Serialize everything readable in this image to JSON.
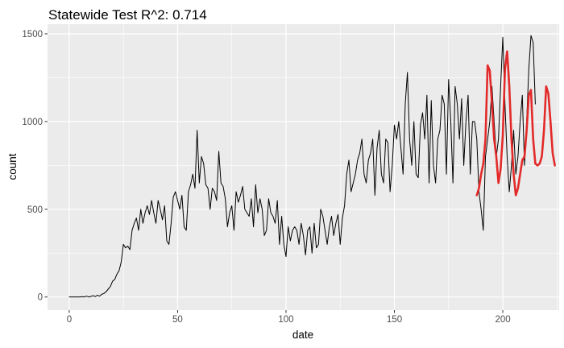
{
  "chart_data": {
    "type": "line",
    "title": "Statewide Test R^2: 0.714",
    "xlabel": "date",
    "ylabel": "count",
    "xlim": [
      -10,
      226
    ],
    "ylim": [
      -75,
      1555
    ],
    "x_ticks": [
      0,
      50,
      100,
      150,
      200
    ],
    "y_ticks": [
      0,
      500,
      1000,
      1500
    ],
    "grid": true,
    "legend": "none",
    "series": [
      {
        "color": "#000000",
        "points": [
          [
            0,
            0
          ],
          [
            1,
            0
          ],
          [
            2,
            0
          ],
          [
            3,
            0
          ],
          [
            4,
            0
          ],
          [
            5,
            0
          ],
          [
            6,
            2
          ],
          [
            7,
            0
          ],
          [
            8,
            5
          ],
          [
            9,
            0
          ],
          [
            10,
            3
          ],
          [
            11,
            8
          ],
          [
            12,
            2
          ],
          [
            13,
            10
          ],
          [
            14,
            5
          ],
          [
            15,
            15
          ],
          [
            16,
            20
          ],
          [
            17,
            30
          ],
          [
            18,
            45
          ],
          [
            19,
            60
          ],
          [
            20,
            90
          ],
          [
            21,
            100
          ],
          [
            22,
            130
          ],
          [
            23,
            150
          ],
          [
            24,
            200
          ],
          [
            25,
            300
          ],
          [
            26,
            280
          ],
          [
            27,
            290
          ],
          [
            28,
            270
          ],
          [
            29,
            380
          ],
          [
            30,
            420
          ],
          [
            31,
            450
          ],
          [
            32,
            380
          ],
          [
            33,
            500
          ],
          [
            34,
            420
          ],
          [
            35,
            480
          ],
          [
            36,
            520
          ],
          [
            37,
            470
          ],
          [
            38,
            550
          ],
          [
            39,
            480
          ],
          [
            40,
            420
          ],
          [
            41,
            550
          ],
          [
            42,
            500
          ],
          [
            43,
            440
          ],
          [
            44,
            520
          ],
          [
            45,
            320
          ],
          [
            46,
            300
          ],
          [
            47,
            420
          ],
          [
            48,
            570
          ],
          [
            49,
            600
          ],
          [
            50,
            550
          ],
          [
            51,
            500
          ],
          [
            52,
            580
          ],
          [
            53,
            400
          ],
          [
            54,
            380
          ],
          [
            55,
            600
          ],
          [
            56,
            640
          ],
          [
            57,
            700
          ],
          [
            58,
            620
          ],
          [
            59,
            950
          ],
          [
            60,
            650
          ],
          [
            61,
            800
          ],
          [
            62,
            760
          ],
          [
            63,
            640
          ],
          [
            64,
            620
          ],
          [
            65,
            500
          ],
          [
            66,
            620
          ],
          [
            67,
            600
          ],
          [
            68,
            550
          ],
          [
            69,
            830
          ],
          [
            70,
            650
          ],
          [
            71,
            630
          ],
          [
            72,
            560
          ],
          [
            73,
            400
          ],
          [
            74,
            480
          ],
          [
            75,
            520
          ],
          [
            76,
            380
          ],
          [
            77,
            600
          ],
          [
            78,
            540
          ],
          [
            79,
            580
          ],
          [
            80,
            630
          ],
          [
            81,
            500
          ],
          [
            82,
            480
          ],
          [
            83,
            460
          ],
          [
            84,
            560
          ],
          [
            85,
            400
          ],
          [
            86,
            640
          ],
          [
            87,
            480
          ],
          [
            88,
            560
          ],
          [
            89,
            500
          ],
          [
            90,
            350
          ],
          [
            91,
            380
          ],
          [
            92,
            560
          ],
          [
            93,
            480
          ],
          [
            94,
            460
          ],
          [
            95,
            420
          ],
          [
            96,
            550
          ],
          [
            97,
            300
          ],
          [
            98,
            460
          ],
          [
            99,
            300
          ],
          [
            100,
            230
          ],
          [
            101,
            400
          ],
          [
            102,
            320
          ],
          [
            103,
            380
          ],
          [
            104,
            400
          ],
          [
            105,
            380
          ],
          [
            106,
            300
          ],
          [
            107,
            420
          ],
          [
            108,
            350
          ],
          [
            109,
            240
          ],
          [
            110,
            380
          ],
          [
            111,
            400
          ],
          [
            112,
            250
          ],
          [
            113,
            420
          ],
          [
            114,
            280
          ],
          [
            115,
            300
          ],
          [
            116,
            500
          ],
          [
            117,
            460
          ],
          [
            118,
            380
          ],
          [
            119,
            300
          ],
          [
            120,
            400
          ],
          [
            121,
            460
          ],
          [
            122,
            350
          ],
          [
            123,
            420
          ],
          [
            124,
            470
          ],
          [
            125,
            300
          ],
          [
            126,
            450
          ],
          [
            127,
            520
          ],
          [
            128,
            700
          ],
          [
            129,
            780
          ],
          [
            130,
            600
          ],
          [
            131,
            650
          ],
          [
            132,
            700
          ],
          [
            133,
            780
          ],
          [
            134,
            820
          ],
          [
            135,
            900
          ],
          [
            136,
            700
          ],
          [
            137,
            650
          ],
          [
            138,
            780
          ],
          [
            139,
            820
          ],
          [
            140,
            900
          ],
          [
            141,
            580
          ],
          [
            142,
            850
          ],
          [
            143,
            950
          ],
          [
            144,
            700
          ],
          [
            145,
            650
          ],
          [
            146,
            900
          ],
          [
            147,
            880
          ],
          [
            148,
            600
          ],
          [
            149,
            750
          ],
          [
            150,
            980
          ],
          [
            151,
            900
          ],
          [
            152,
            1000
          ],
          [
            153,
            850
          ],
          [
            154,
            700
          ],
          [
            155,
            1100
          ],
          [
            156,
            1280
          ],
          [
            157,
            900
          ],
          [
            158,
            750
          ],
          [
            159,
            1000
          ],
          [
            160,
            700
          ],
          [
            161,
            680
          ],
          [
            162,
            980
          ],
          [
            163,
            1050
          ],
          [
            164,
            900
          ],
          [
            165,
            1150
          ],
          [
            166,
            650
          ],
          [
            167,
            1120
          ],
          [
            168,
            750
          ],
          [
            169,
            650
          ],
          [
            170,
            900
          ],
          [
            171,
            950
          ],
          [
            172,
            1150
          ],
          [
            173,
            1100
          ],
          [
            174,
            700
          ],
          [
            175,
            1240
          ],
          [
            176,
            1000
          ],
          [
            177,
            650
          ],
          [
            178,
            1200
          ],
          [
            179,
            1100
          ],
          [
            180,
            900
          ],
          [
            181,
            1130
          ],
          [
            182,
            750
          ],
          [
            183,
            1000
          ],
          [
            184,
            1150
          ],
          [
            185,
            700
          ],
          [
            186,
            1000
          ],
          [
            187,
            1000
          ],
          [
            188,
            900
          ],
          [
            189,
            600
          ],
          [
            190,
            500
          ],
          [
            191,
            380
          ],
          [
            192,
            800
          ],
          [
            193,
            900
          ],
          [
            194,
            1000
          ],
          [
            195,
            1200
          ],
          [
            196,
            1000
          ],
          [
            197,
            800
          ],
          [
            198,
            900
          ],
          [
            199,
            1200
          ],
          [
            200,
            1480
          ],
          [
            201,
            1100
          ],
          [
            202,
            800
          ],
          [
            203,
            600
          ],
          [
            204,
            750
          ],
          [
            205,
            950
          ],
          [
            206,
            700
          ],
          [
            207,
            800
          ],
          [
            208,
            1000
          ],
          [
            209,
            1150
          ],
          [
            210,
            750
          ],
          [
            211,
            1000
          ],
          [
            212,
            1300
          ],
          [
            213,
            1490
          ],
          [
            214,
            1450
          ],
          [
            215,
            1100
          ]
        ]
      },
      {
        "color": "#e32a2a",
        "points": [
          [
            188,
            580
          ],
          [
            189,
            620
          ],
          [
            190,
            700
          ],
          [
            191,
            760
          ],
          [
            192,
            900
          ],
          [
            193,
            1320
          ],
          [
            194,
            1290
          ],
          [
            195,
            1100
          ],
          [
            196,
            900
          ],
          [
            197,
            800
          ],
          [
            198,
            650
          ],
          [
            199,
            730
          ],
          [
            200,
            920
          ],
          [
            201,
            1300
          ],
          [
            202,
            1400
          ],
          [
            203,
            1200
          ],
          [
            204,
            900
          ],
          [
            205,
            700
          ],
          [
            206,
            580
          ],
          [
            207,
            620
          ],
          [
            208,
            700
          ],
          [
            209,
            780
          ],
          [
            210,
            800
          ],
          [
            211,
            950
          ],
          [
            212,
            1150
          ],
          [
            213,
            1180
          ],
          [
            214,
            900
          ],
          [
            215,
            760
          ],
          [
            216,
            750
          ],
          [
            217,
            760
          ],
          [
            218,
            800
          ],
          [
            219,
            950
          ],
          [
            220,
            1200
          ],
          [
            221,
            1160
          ],
          [
            222,
            1000
          ],
          [
            223,
            820
          ],
          [
            224,
            750
          ]
        ]
      }
    ]
  }
}
